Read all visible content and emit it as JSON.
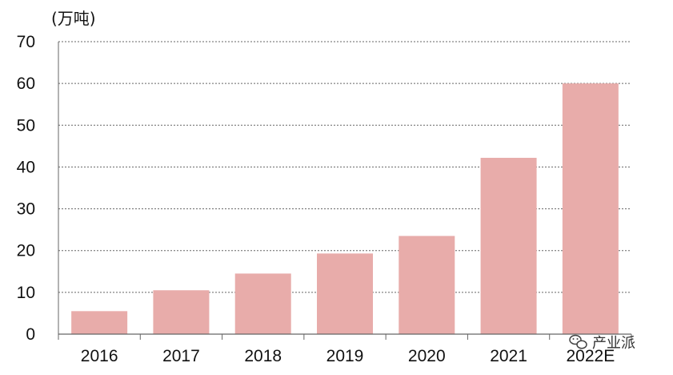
{
  "chart_data": {
    "type": "bar",
    "ylabel": "(万吨)",
    "categories": [
      "2016",
      "2017",
      "2018",
      "2019",
      "2020",
      "2021",
      "2022E"
    ],
    "values": [
      5.5,
      10.5,
      14.5,
      19.3,
      23.5,
      42.2,
      60
    ],
    "ylim": [
      0,
      70
    ],
    "yticks": [
      0,
      10,
      20,
      30,
      40,
      50,
      60,
      70
    ],
    "grid": "horizontal-dashed",
    "bar_color": "#e8acaa",
    "grid_color": "#666666"
  },
  "watermark": {
    "text": "产业派",
    "icon": "wechat-icon"
  }
}
